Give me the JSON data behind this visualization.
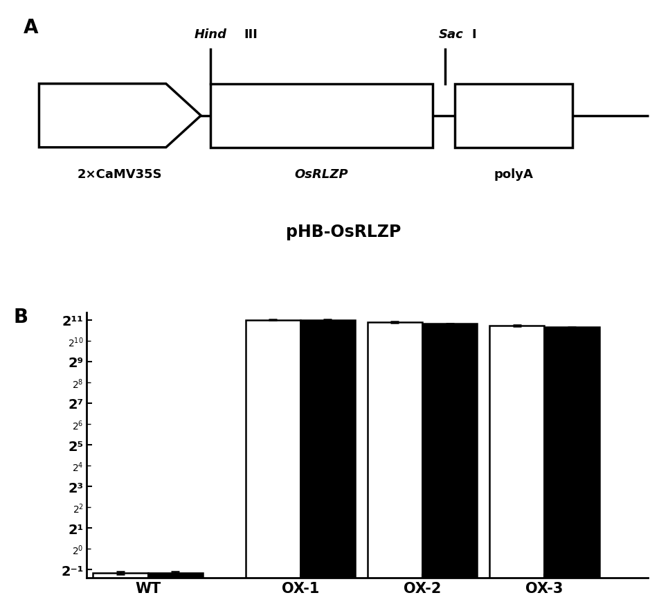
{
  "panel_A": {
    "arrow_label": "2×CaMV35S",
    "gene_label": "OsRLZP",
    "polyA_label": "polyA",
    "construct_label": "pHB-OsRLZP"
  },
  "panel_B": {
    "categories": [
      "WT",
      "OX-1",
      "OX-2",
      "OX-3"
    ],
    "white_bars": [
      0.45,
      2048,
      1900,
      1700
    ],
    "black_bars": [
      0.45,
      2048,
      1800,
      1600
    ],
    "white_errors": [
      0.02,
      25,
      35,
      45
    ],
    "black_errors": [
      0.02,
      20,
      25,
      30
    ],
    "ytick_labels": [
      "2⁻¹",
      "2¹",
      "2³",
      "2⁵",
      "2⁷",
      "2⁹",
      "2¹¹"
    ],
    "ytick_values": [
      0.5,
      2,
      8,
      32,
      128,
      512,
      2048
    ],
    "ymin": 0.38,
    "ymax": 2600
  }
}
